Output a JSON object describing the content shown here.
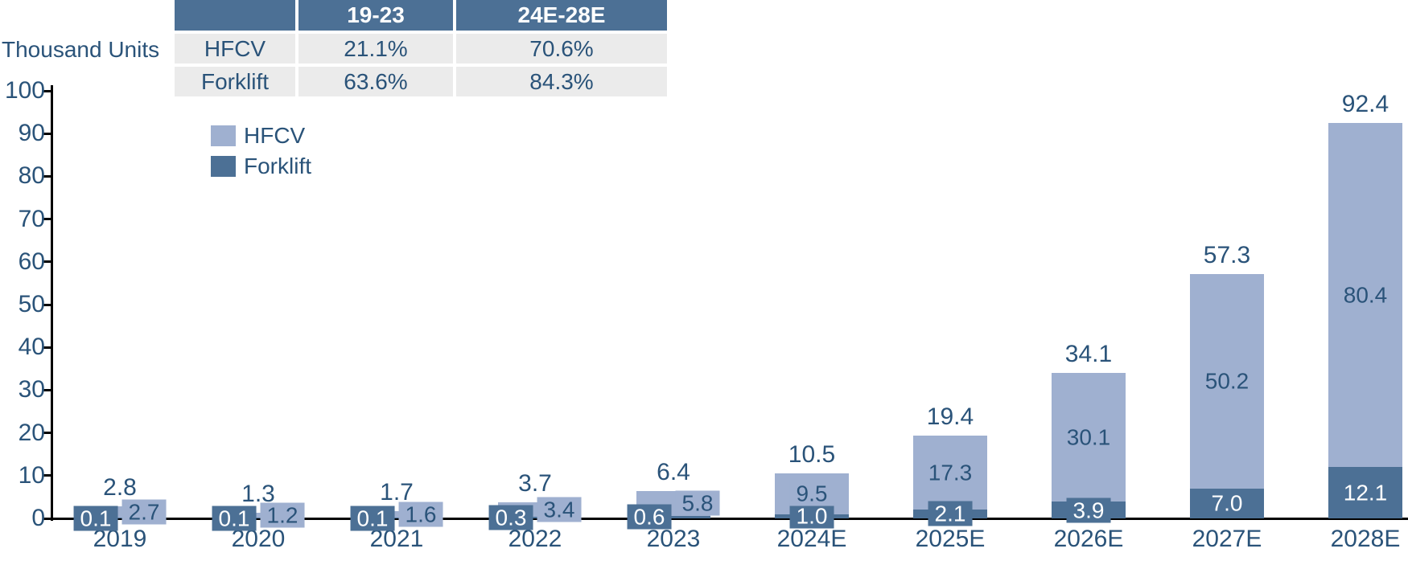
{
  "y_axis_title": "Thousand Units",
  "colors": {
    "hfcv": "#9fb0d0",
    "forklift": "#4c7095",
    "navy": "#2a5379",
    "table_row_bg": "#ebebeb",
    "axis": "#000000"
  },
  "cagr_table": {
    "header": [
      "",
      "19-23",
      "24E-28E"
    ],
    "rows": [
      [
        "HFCV",
        "21.1%",
        "70.6%"
      ],
      [
        "Forklift",
        "63.6%",
        "84.3%"
      ]
    ]
  },
  "legend": [
    {
      "label": "HFCV",
      "color": "#9fb0d0"
    },
    {
      "label": "Forklift",
      "color": "#4c7095"
    }
  ],
  "chart_data": {
    "type": "bar",
    "stacked": true,
    "title": "",
    "ylabel": "Thousand Units",
    "xlabel": "",
    "ylim": [
      0,
      100
    ],
    "ytick_step": 10,
    "grid": false,
    "legend_position": "upper-left",
    "categories": [
      "2019",
      "2020",
      "2021",
      "2022",
      "2023",
      "2024E",
      "2025E",
      "2026E",
      "2027E",
      "2028E"
    ],
    "series": [
      {
        "name": "Forklift",
        "values": [
          0.1,
          0.1,
          0.1,
          0.3,
          0.6,
          1.0,
          2.1,
          3.9,
          7.0,
          12.1
        ]
      },
      {
        "name": "HFCV",
        "values": [
          2.7,
          1.2,
          1.6,
          3.4,
          5.8,
          9.5,
          17.3,
          30.1,
          50.2,
          80.4
        ]
      }
    ],
    "totals": [
      2.8,
      1.3,
      1.7,
      3.7,
      6.4,
      10.5,
      19.4,
      34.1,
      57.3,
      92.4
    ]
  }
}
